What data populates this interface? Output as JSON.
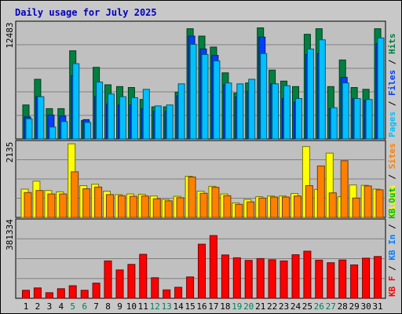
{
  "chart_data": {
    "type": "bar",
    "title": "Daily usage for July 2025",
    "categories": [
      "1",
      "2",
      "3",
      "4",
      "5",
      "6",
      "7",
      "8",
      "9",
      "10",
      "11",
      "12",
      "13",
      "14",
      "15",
      "16",
      "17",
      "18",
      "19",
      "20",
      "21",
      "22",
      "23",
      "24",
      "25",
      "26",
      "27",
      "28",
      "29",
      "30",
      "31"
    ],
    "weekend_categories": [
      "5",
      "6",
      "12",
      "13",
      "19",
      "20",
      "26",
      "27"
    ],
    "panels": [
      {
        "id": "top",
        "max_label": "12483",
        "ymax": 12483,
        "legend": [
          {
            "text": "Pages",
            "color": "#00c0ff"
          },
          {
            "text": "Files",
            "color": "#0040ff"
          },
          {
            "text": "Hits",
            "color": "#008040"
          }
        ],
        "series": [
          {
            "name": "Hits",
            "color": "#008040",
            "values": [
              3700,
              6500,
              3300,
              3300,
              9600,
              2000,
              7800,
              5900,
              5700,
              5600,
              4300,
              3500,
              3500,
              5100,
              12000,
              11200,
              10000,
              7200,
              5000,
              6100,
              12100,
              7500,
              6300,
              5700,
              11400,
              12000,
              5700,
              8600,
              5600,
              5400,
              12000
            ]
          },
          {
            "name": "Files",
            "color": "#0040ff",
            "values": [
              2400,
              4600,
              2600,
              2500,
              6900,
              2100,
              4600,
              3800,
              3700,
              3700,
              3300,
              3000,
              3000,
              4700,
              11200,
              9800,
              9100,
              5900,
              4600,
              5200,
              11100,
              6000,
              4400,
              4000,
              9200,
              9300,
              3300,
              6700,
              4400,
              4200,
              10400
            ]
          },
          {
            "name": "Pages",
            "color": "#00c0ff",
            "values": [
              2200,
              4600,
              1300,
              1900,
              8200,
              1800,
              6200,
              4900,
              4600,
              4500,
              5400,
              3600,
              3700,
              6000,
              10300,
              9200,
              8500,
              6100,
              6000,
              6500,
              9300,
              6000,
              5800,
              4400,
              9800,
              10800,
              3400,
              6100,
              4400,
              4300,
              11000
            ]
          }
        ]
      },
      {
        "id": "middle",
        "max_label": "2135",
        "ymax": 2135,
        "legend": [
          {
            "text": "Visits",
            "color": "#ffff00"
          },
          {
            "text": "Sites",
            "color": "#ff8000"
          }
        ],
        "series": [
          {
            "name": "Visits",
            "color": "#ffff00",
            "values": [
              820,
              1050,
              780,
              740,
              2130,
              920,
              960,
              760,
              660,
              680,
              670,
              620,
              520,
              610,
              1190,
              760,
              900,
              680,
              420,
              520,
              600,
              620,
              620,
              690,
              2050,
              810,
              1860,
              600,
              940,
              930,
              820
            ]
          },
          {
            "name": "Sites",
            "color": "#ff8000",
            "values": [
              720,
              780,
              680,
              680,
              1320,
              830,
              880,
              660,
              630,
              610,
              620,
              540,
              480,
              570,
              1170,
              700,
              870,
              630,
              380,
              450,
              560,
              590,
              590,
              620,
              920,
              1490,
              710,
              1640,
              560,
              910,
              800
            ]
          }
        ]
      },
      {
        "id": "bottom",
        "max_label": "381334",
        "ymax": 381334,
        "legend": [
          {
            "text": "KB F",
            "color": "#ff0000"
          },
          {
            "text": "KB In",
            "color": "#0080ff"
          },
          {
            "text": "KB Out",
            "color": "#00c000"
          }
        ],
        "series": [
          {
            "name": "KB F",
            "color": "#ff0000",
            "values": [
              40000,
              52000,
              28000,
              48000,
              63000,
              40000,
              76000,
              187000,
              142000,
              170000,
              220000,
              103000,
              42000,
              55000,
              107000,
              271000,
              314000,
              217000,
              203000,
              190000,
              199000,
              193000,
              187000,
              218000,
              236000,
              191000,
              178000,
              192000,
              167000,
              201000,
              209000
            ]
          }
        ]
      }
    ]
  }
}
